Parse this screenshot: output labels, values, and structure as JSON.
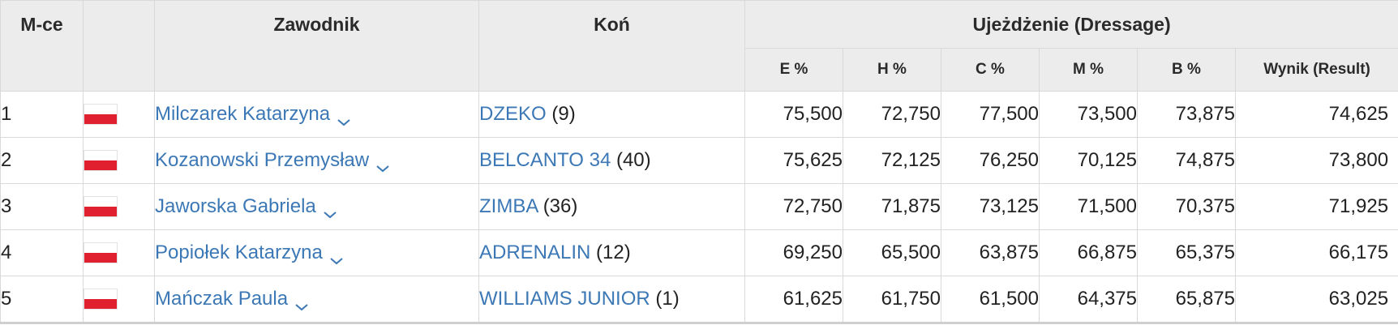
{
  "header": {
    "place": "M-ce",
    "rider": "Zawodnik",
    "horse": "Koń",
    "dressage": "Ujeżdżenie (Dressage)",
    "judges": [
      "E %",
      "H %",
      "C %",
      "M %",
      "B %"
    ],
    "result": "Wynik (Result)"
  },
  "colors": {
    "link": "#3c78b5",
    "header_bg": "#ececec",
    "flag_red": "#e0202e"
  },
  "rows": [
    {
      "place": "1",
      "flag": "poland-flag",
      "rider": "Milczarek Katarzyna",
      "horse": "DZEKO",
      "horse_num": "(9)",
      "scores": [
        "75,500",
        "72,750",
        "77,500",
        "73,500",
        "73,875"
      ],
      "result": "74,625"
    },
    {
      "place": "2",
      "flag": "poland-flag",
      "rider": "Kozanowski Przemysław",
      "horse": "BELCANTO 34",
      "horse_num": "(40)",
      "scores": [
        "75,625",
        "72,125",
        "76,250",
        "70,125",
        "74,875"
      ],
      "result": "73,800"
    },
    {
      "place": "3",
      "flag": "poland-flag",
      "rider": "Jaworska Gabriela",
      "horse": "ZIMBA",
      "horse_num": "(36)",
      "scores": [
        "72,750",
        "71,875",
        "73,125",
        "71,500",
        "70,375"
      ],
      "result": "71,925"
    },
    {
      "place": "4",
      "flag": "poland-flag",
      "rider": "Popiołek Katarzyna",
      "horse": "ADRENALIN",
      "horse_num": "(12)",
      "scores": [
        "69,250",
        "65,500",
        "63,875",
        "66,875",
        "65,375"
      ],
      "result": "66,175"
    },
    {
      "place": "5",
      "flag": "poland-flag",
      "rider": "Mańczak Paula",
      "horse": "WILLIAMS JUNIOR",
      "horse_num": "(1)",
      "scores": [
        "61,625",
        "61,750",
        "61,500",
        "64,375",
        "65,875"
      ],
      "result": "63,025"
    }
  ]
}
